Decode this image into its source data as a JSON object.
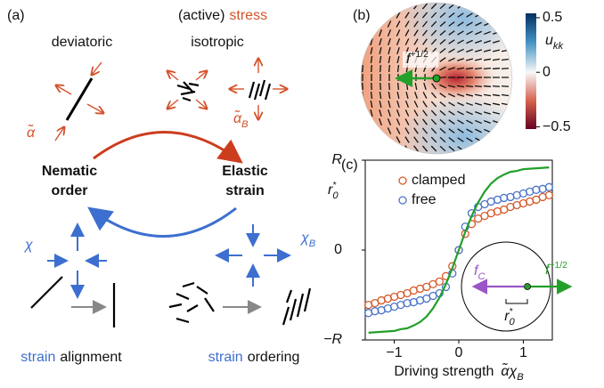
{
  "panel_a": {
    "label": "(a)",
    "heading": {
      "prefix": "(active)",
      "word": "stress"
    },
    "deviatoric": "deviatoric",
    "isotropic": "isotropic",
    "alpha": {
      "symbol": "α̃"
    },
    "alpha_B": {
      "symbol": "α̃",
      "sub": "B"
    },
    "nematic": [
      "Nematic",
      "order"
    ],
    "elastic": [
      "Elastic",
      "strain"
    ],
    "chi": {
      "symbol": "χ"
    },
    "chi_B": {
      "symbol": "χ",
      "sub": "B"
    },
    "alignment": {
      "word": "strain",
      "rest": "alignment"
    },
    "ordering": {
      "word": "strain",
      "rest": "ordering"
    }
  },
  "panel_b": {
    "label": "(b)",
    "force": {
      "symbol": "f",
      "sup": "+1/2"
    },
    "colorbar": {
      "label": {
        "symbol": "u",
        "sub": "kk"
      },
      "lim": [
        -0.52,
        0.54
      ],
      "ticks": [
        0.5,
        0,
        {
          "value": -0.5,
          "label": "−0.5"
        }
      ]
    }
  },
  "chart_data": {
    "type": "line",
    "label": "(c)",
    "ylabel": {
      "symbol": "r",
      "sub": "0",
      "sup": "*"
    },
    "xlabel": {
      "text": "Driving strength",
      "symbol": "α̃χ",
      "sub": "B"
    },
    "x": [
      -1.4,
      -1.3,
      -1.2,
      -1.1,
      -1.0,
      -0.9,
      -0.8,
      -0.7,
      -0.6,
      -0.5,
      -0.4,
      -0.3,
      -0.2,
      -0.1,
      0,
      0.1,
      0.2,
      0.3,
      0.4,
      0.5,
      0.6,
      0.7,
      0.8,
      0.9,
      1.0,
      1.1,
      1.2,
      1.3,
      1.4
    ],
    "series": [
      {
        "name": "clamped",
        "color": "#d65a2a",
        "style": "markers",
        "values": [
          -0.61,
          -0.59,
          -0.56,
          -0.54,
          -0.52,
          -0.5,
          -0.48,
          -0.45,
          -0.43,
          -0.41,
          -0.38,
          -0.35,
          -0.29,
          -0.18,
          0,
          0.18,
          0.29,
          0.35,
          0.38,
          0.41,
          0.43,
          0.45,
          0.48,
          0.5,
          0.52,
          0.54,
          0.56,
          0.59,
          0.61
        ]
      },
      {
        "name": "free",
        "color": "#4a74c9",
        "style": "markers",
        "values": [
          -0.7,
          -0.68,
          -0.67,
          -0.65,
          -0.63,
          -0.61,
          -0.59,
          -0.58,
          -0.56,
          -0.54,
          -0.51,
          -0.48,
          -0.41,
          -0.26,
          0,
          0.26,
          0.41,
          0.48,
          0.51,
          0.54,
          0.56,
          0.58,
          0.59,
          0.61,
          0.63,
          0.65,
          0.67,
          0.68,
          0.7
        ]
      },
      {
        "color": "#22a02a",
        "style": "line",
        "values": [
          -0.92,
          -0.915,
          -0.91,
          -0.905,
          -0.9,
          -0.88,
          -0.87,
          -0.84,
          -0.8,
          -0.74,
          -0.65,
          -0.53,
          -0.38,
          -0.2,
          0,
          0.2,
          0.38,
          0.53,
          0.65,
          0.74,
          0.8,
          0.84,
          0.87,
          0.88,
          0.9,
          0.905,
          0.91,
          0.915,
          0.92
        ]
      }
    ],
    "xlim": [
      -1.45,
      1.45
    ],
    "ylim": [
      -1,
      1
    ],
    "xticks": [
      {
        "value": -1,
        "label": "−1"
      },
      0,
      1
    ],
    "yticks": [
      {
        "value": -1,
        "label": "−R"
      },
      0,
      {
        "value": 1,
        "label": "R"
      }
    ],
    "inset": {
      "force_c": {
        "symbol": "f",
        "sub": "C"
      },
      "force_defect": {
        "symbol": "f",
        "sup": "+1/2"
      },
      "radius": {
        "symbol": "r",
        "sub": "0",
        "sup": "*"
      }
    }
  }
}
